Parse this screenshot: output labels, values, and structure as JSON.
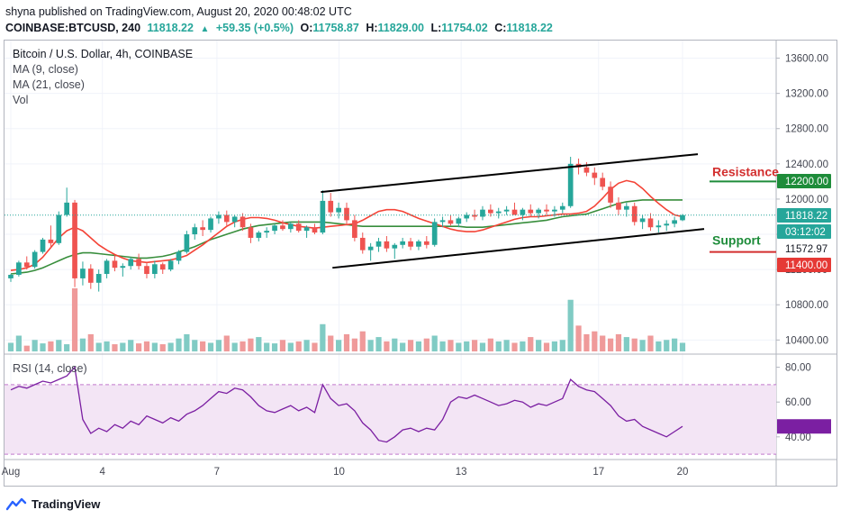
{
  "header": {
    "published": "shyna published on TradingView.com, August 20, 2020 00:48:02 UTC",
    "symbol": "COINBASE:BTCUSD, 240",
    "price": "11818.22",
    "change_arrow": "▲",
    "change": "+59.35 (+0.5%)",
    "o_label": "O:",
    "o_val": "11758.87",
    "h_label": "H:",
    "h_val": "11829.00",
    "l_label": "L:",
    "l_val": "11754.02",
    "c_label": "C:",
    "c_val": "11818.22"
  },
  "legend": {
    "title": "Bitcoin / U.S. Dollar, 4h, COINBASE",
    "ma9": "MA (9, close)",
    "ma21": "MA (21, close)",
    "vol": "Vol",
    "rsi": "RSI (14, close)"
  },
  "annotations": {
    "resistance": "Resistance",
    "support": "Support"
  },
  "price_tags": [
    {
      "label": "11818.22",
      "value": 11818.22,
      "color": "#26a69a"
    },
    {
      "label": "03:12:02",
      "value": 11695,
      "color": "#26a69a"
    },
    {
      "label": "11572.97",
      "value": 11572.97,
      "color": "#ffffff",
      "text_color": "#131722"
    },
    {
      "label": "12200.00",
      "value": 12200,
      "color": "#1e8c3a"
    },
    {
      "label": "11400.00",
      "value": 11400,
      "color": "#e53935"
    }
  ],
  "rsi_tags": [
    {
      "label": "",
      "value": 46
    }
  ],
  "footer": {
    "brand": "TradingView"
  },
  "colors": {
    "up": "#26a69a",
    "down": "#ef5350",
    "ma9": "#f44336",
    "ma21": "#388e3c",
    "rsi_line": "#7b1fa2",
    "rsi_band": "#f3e5f5",
    "vol_up": "#80cbc4",
    "vol_down": "#ef9a9a"
  },
  "chart_data": [
    {
      "type": "candlestick",
      "title": "Bitcoin / U.S. Dollar, 4h, COINBASE",
      "y_ticks": [
        10400,
        10800,
        11200,
        11600,
        12000,
        12400,
        12800,
        13200,
        13600
      ],
      "x_ticks": [
        "Aug",
        "4",
        "7",
        "10",
        "13",
        "17",
        "20"
      ],
      "ylim": [
        10250,
        13800
      ],
      "ma9": [
        11190,
        11200,
        11220,
        11260,
        11340,
        11450,
        11560,
        11640,
        11680,
        11640,
        11560,
        11480,
        11420,
        11370,
        11330,
        11300,
        11290,
        11280,
        11290,
        11300,
        11310,
        11330,
        11360,
        11420,
        11480,
        11550,
        11620,
        11690,
        11740,
        11770,
        11790,
        11790,
        11780,
        11760,
        11730,
        11710,
        11690,
        11680,
        11670,
        11680,
        11690,
        11700,
        11710,
        11720,
        11760,
        11810,
        11860,
        11880,
        11880,
        11860,
        11820,
        11780,
        11750,
        11720,
        11690,
        11660,
        11640,
        11630,
        11630,
        11650,
        11680,
        11710,
        11740,
        11770,
        11790,
        11800,
        11800,
        11810,
        11820,
        11830,
        11830,
        11840,
        11860,
        11920,
        12010,
        12110,
        12180,
        12210,
        12190,
        12120,
        12030,
        11950,
        11880,
        11820,
        11800
      ],
      "ma21": [
        11150,
        11160,
        11170,
        11190,
        11220,
        11260,
        11300,
        11340,
        11370,
        11390,
        11390,
        11380,
        11370,
        11360,
        11350,
        11340,
        11330,
        11330,
        11340,
        11350,
        11370,
        11400,
        11430,
        11460,
        11500,
        11540,
        11570,
        11600,
        11630,
        11660,
        11680,
        11700,
        11710,
        11720,
        11730,
        11740,
        11740,
        11740,
        11740,
        11740,
        11730,
        11720,
        11710,
        11700,
        11690,
        11690,
        11690,
        11690,
        11690,
        11690,
        11690,
        11690,
        11690,
        11690,
        11690,
        11690,
        11690,
        11680,
        11680,
        11680,
        11690,
        11700,
        11710,
        11720,
        11730,
        11740,
        11750,
        11760,
        11780,
        11800,
        11810,
        11820,
        11830,
        11860,
        11890,
        11920,
        11950,
        11970,
        11980,
        11990,
        11990,
        11990,
        11990,
        11990,
        11990
      ],
      "candles": [
        [
          11100,
          11150,
          11060,
          11140
        ],
        [
          11140,
          11300,
          11120,
          11280
        ],
        [
          11280,
          11350,
          11200,
          11230
        ],
        [
          11230,
          11420,
          11210,
          11400
        ],
        [
          11400,
          11560,
          11380,
          11540
        ],
        [
          11540,
          11700,
          11450,
          11500
        ],
        [
          11500,
          11860,
          11480,
          11820
        ],
        [
          11820,
          12130,
          11800,
          11960
        ],
        [
          11960,
          11990,
          11000,
          11100
        ],
        [
          11100,
          11290,
          11020,
          11210
        ],
        [
          11210,
          11260,
          10980,
          11050
        ],
        [
          11050,
          11200,
          10950,
          11150
        ],
        [
          11150,
          11320,
          11100,
          11300
        ],
        [
          11300,
          11360,
          11180,
          11220
        ],
        [
          11220,
          11270,
          11120,
          11240
        ],
        [
          11240,
          11340,
          11200,
          11320
        ],
        [
          11320,
          11380,
          11200,
          11240
        ],
        [
          11240,
          11280,
          11100,
          11150
        ],
        [
          11150,
          11300,
          11100,
          11260
        ],
        [
          11260,
          11280,
          11150,
          11200
        ],
        [
          11200,
          11320,
          11180,
          11300
        ],
        [
          11300,
          11420,
          11260,
          11400
        ],
        [
          11400,
          11640,
          11380,
          11600
        ],
        [
          11600,
          11720,
          11540,
          11680
        ],
        [
          11680,
          11760,
          11580,
          11650
        ],
        [
          11650,
          11800,
          11620,
          11780
        ],
        [
          11780,
          11860,
          11720,
          11820
        ],
        [
          11820,
          11870,
          11700,
          11740
        ],
        [
          11740,
          11820,
          11680,
          11800
        ],
        [
          11800,
          11840,
          11640,
          11680
        ],
        [
          11680,
          11720,
          11500,
          11560
        ],
        [
          11560,
          11640,
          11520,
          11620
        ],
        [
          11620,
          11680,
          11560,
          11640
        ],
        [
          11640,
          11720,
          11600,
          11700
        ],
        [
          11700,
          11760,
          11640,
          11660
        ],
        [
          11660,
          11740,
          11620,
          11720
        ],
        [
          11720,
          11760,
          11620,
          11640
        ],
        [
          11640,
          11700,
          11560,
          11680
        ],
        [
          11680,
          11720,
          11600,
          11620
        ],
        [
          11620,
          12100,
          11600,
          11980
        ],
        [
          11980,
          12070,
          11800,
          11850
        ],
        [
          11850,
          11960,
          11780,
          11900
        ],
        [
          11900,
          11960,
          11720,
          11760
        ],
        [
          11760,
          11820,
          11520,
          11560
        ],
        [
          11560,
          11620,
          11380,
          11420
        ],
        [
          11420,
          11500,
          11300,
          11460
        ],
        [
          11460,
          11560,
          11400,
          11520
        ],
        [
          11520,
          11580,
          11400,
          11440
        ],
        [
          11440,
          11500,
          11320,
          11480
        ],
        [
          11480,
          11560,
          11440,
          11520
        ],
        [
          11520,
          11560,
          11420,
          11460
        ],
        [
          11460,
          11540,
          11420,
          11520
        ],
        [
          11520,
          11580,
          11440,
          11480
        ],
        [
          11480,
          11780,
          11460,
          11740
        ],
        [
          11740,
          11800,
          11680,
          11760
        ],
        [
          11760,
          11820,
          11700,
          11720
        ],
        [
          11720,
          11800,
          11680,
          11780
        ],
        [
          11780,
          11850,
          11740,
          11820
        ],
        [
          11820,
          11880,
          11760,
          11800
        ],
        [
          11800,
          11920,
          11760,
          11880
        ],
        [
          11880,
          11940,
          11800,
          11840
        ],
        [
          11840,
          11900,
          11780,
          11860
        ],
        [
          11860,
          11920,
          11820,
          11880
        ],
        [
          11880,
          11960,
          11840,
          11820
        ],
        [
          11820,
          11900,
          11760,
          11880
        ],
        [
          11880,
          11940,
          11800,
          11840
        ],
        [
          11840,
          11900,
          11780,
          11880
        ],
        [
          11880,
          11940,
          11820,
          11860
        ],
        [
          11860,
          11920,
          11800,
          11880
        ],
        [
          11880,
          11960,
          11840,
          11920
        ],
        [
          11920,
          12480,
          11900,
          12400
        ],
        [
          12400,
          12460,
          12280,
          12360
        ],
        [
          12360,
          12420,
          12260,
          12300
        ],
        [
          12300,
          12360,
          12160,
          12240
        ],
        [
          12240,
          12300,
          12100,
          12140
        ],
        [
          12140,
          12200,
          11900,
          11960
        ],
        [
          11960,
          12020,
          11820,
          11880
        ],
        [
          11880,
          11960,
          11800,
          11920
        ],
        [
          11920,
          11960,
          11700,
          11740
        ],
        [
          11740,
          11820,
          11660,
          11780
        ],
        [
          11780,
          11840,
          11640,
          11680
        ],
        [
          11680,
          11760,
          11620,
          11700
        ],
        [
          11700,
          11760,
          11640,
          11720
        ],
        [
          11720,
          11800,
          11680,
          11760
        ],
        [
          11760,
          11830,
          11750,
          11818
        ]
      ],
      "volume": [
        30,
        55,
        20,
        40,
        28,
        35,
        40,
        25,
        220,
        45,
        60,
        30,
        35,
        25,
        30,
        40,
        28,
        35,
        30,
        25,
        30,
        45,
        60,
        40,
        35,
        30,
        40,
        55,
        30,
        35,
        45,
        50,
        30,
        28,
        40,
        30,
        35,
        40,
        30,
        95,
        55,
        40,
        60,
        45,
        70,
        40,
        50,
        35,
        45,
        30,
        40,
        35,
        45,
        55,
        35,
        40,
        30,
        35,
        40,
        30,
        45,
        35,
        40,
        30,
        35,
        50,
        40,
        30,
        35,
        40,
        180,
        90,
        60,
        70,
        55,
        45,
        60,
        50,
        45,
        40,
        55,
        35,
        40,
        45,
        30
      ],
      "volume_up": [
        true,
        true,
        false,
        true,
        true,
        false,
        true,
        true,
        false,
        true,
        false,
        true,
        true,
        false,
        true,
        true,
        false,
        false,
        true,
        false,
        true,
        true,
        true,
        true,
        false,
        true,
        true,
        false,
        true,
        false,
        false,
        true,
        true,
        true,
        false,
        true,
        false,
        true,
        false,
        true,
        false,
        true,
        false,
        false,
        false,
        true,
        true,
        false,
        true,
        true,
        false,
        true,
        false,
        true,
        true,
        false,
        true,
        true,
        false,
        true,
        false,
        true,
        true,
        false,
        true,
        false,
        true,
        false,
        true,
        true,
        true,
        false,
        false,
        false,
        false,
        false,
        false,
        true,
        false,
        true,
        false,
        true,
        true,
        true,
        true
      ]
    },
    {
      "type": "line",
      "title": "RSI (14, close)",
      "y_ticks": [
        40,
        60,
        80
      ],
      "ylim": [
        28,
        86
      ],
      "band": [
        30,
        70
      ],
      "values": [
        67,
        69,
        68,
        70,
        72,
        71,
        73,
        75,
        80,
        50,
        42,
        45,
        43,
        47,
        45,
        49,
        47,
        52,
        50,
        48,
        51,
        49,
        53,
        55,
        58,
        62,
        66,
        65,
        68,
        67,
        63,
        58,
        55,
        54,
        56,
        58,
        55,
        57,
        54,
        70,
        62,
        58,
        59,
        55,
        48,
        44,
        38,
        37,
        40,
        44,
        45,
        43,
        45,
        44,
        50,
        60,
        63,
        62,
        64,
        62,
        60,
        58,
        59,
        61,
        60,
        57,
        59,
        58,
        60,
        62,
        73,
        69,
        67,
        66,
        62,
        58,
        52,
        49,
        50,
        46,
        44,
        42,
        40,
        43,
        46
      ]
    }
  ]
}
